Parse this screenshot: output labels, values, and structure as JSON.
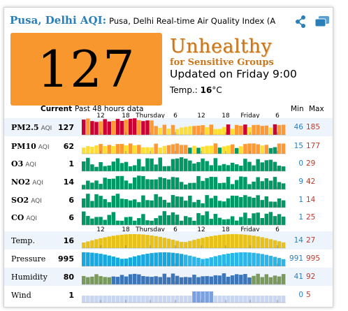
{
  "header": {
    "city": "Pusa, Delhi AQI:",
    "subtitle": "Pusa, Delhi Real-time Air Quality Index (A",
    "icons": [
      "share-icon",
      "windows-icon"
    ]
  },
  "aqi": {
    "value": "127",
    "status_big": "Unhealthy",
    "status_small": "for Sensitive Groups",
    "updated": "Updated on Friday 9:00",
    "temp_label": "Temp.:",
    "temp_value": "16",
    "temp_unit": "°C",
    "box_color": "#f7972d"
  },
  "table": {
    "current_label": "Current",
    "past_label": "Past 48 hours data",
    "min_label": "Min",
    "max_label": "Max",
    "axis_ticks": [
      "12",
      "18",
      "Thursday",
      "6",
      "12",
      "18",
      "Friday",
      "6"
    ],
    "rows": [
      {
        "name": "PM2.5",
        "aqi_tag": "AQI",
        "current": "127",
        "min": "46",
        "max": "185",
        "max_color": "red",
        "type": "aqi"
      },
      {
        "name": "PM10",
        "aqi_tag": "AQI",
        "current": "62",
        "min": "15",
        "max": "177",
        "max_color": "red",
        "type": "aqi"
      },
      {
        "name": "O3",
        "aqi_tag": "AQI",
        "current": "1",
        "min": "0",
        "max": "29",
        "max_color": "red",
        "type": "aqi"
      },
      {
        "name": "NO2",
        "aqi_tag": "AQI",
        "current": "14",
        "min": "9",
        "max": "42",
        "max_color": "red",
        "type": "aqi"
      },
      {
        "name": "SO2",
        "aqi_tag": "AQI",
        "current": "6",
        "min": "1",
        "max": "14",
        "max_color": "red",
        "type": "aqi"
      },
      {
        "name": "CO",
        "aqi_tag": "AQI",
        "current": "6",
        "min": "1",
        "max": "25",
        "max_color": "red",
        "type": "aqi"
      },
      {
        "name": "Temp.",
        "aqi_tag": "",
        "current": "16",
        "min": "14",
        "max": "27",
        "max_color": "red",
        "type": "temp"
      },
      {
        "name": "Pressure",
        "aqi_tag": "",
        "current": "995",
        "min": "991",
        "max": "995",
        "max_color": "red",
        "type": "pressure"
      },
      {
        "name": "Humidity",
        "aqi_tag": "",
        "current": "80",
        "min": "41",
        "max": "92",
        "max_color": "red",
        "type": "humidity"
      },
      {
        "name": "Wind",
        "aqi_tag": "",
        "current": "1",
        "min": "0",
        "max": "5",
        "max_color": "red",
        "type": "wind"
      }
    ]
  },
  "colors": {
    "good": "#009966",
    "moderate": "#ffde33",
    "usg": "#ff9933",
    "unhealthy": "#cc0033",
    "accent": "#2a7fb8"
  }
}
